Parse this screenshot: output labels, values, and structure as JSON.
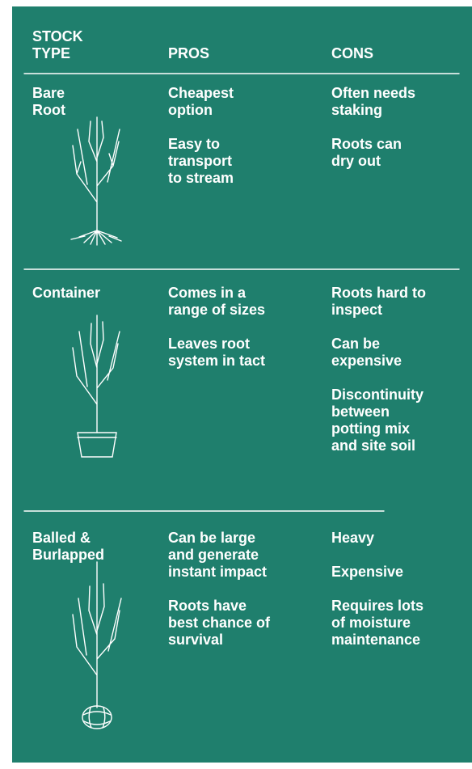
{
  "header": {
    "stock_type": "STOCK\nTYPE",
    "pros": "PROS",
    "cons": "CONS"
  },
  "rows": [
    {
      "type": "Bare\nRoot",
      "pros": [
        "Cheapest\noption",
        "Easy to\ntransport\nto stream"
      ],
      "cons": [
        "Often needs\nstaking",
        "Roots can\ndry out"
      ]
    },
    {
      "type": "Container",
      "pros": [
        "Comes in a\nrange of sizes",
        "Leaves root\nsystem in tact"
      ],
      "cons": [
        "Roots hard to\ninspect",
        "Can be\nexpensive",
        "Discontinuity\nbetween\npotting mix\nand site soil"
      ]
    },
    {
      "type": "Balled &\nBurlapped",
      "pros": [
        "Can be large\nand generate\ninstant impact",
        "Roots have\nbest chance of\nsurvival"
      ],
      "cons": [
        "Heavy",
        "Expensive",
        "Requires lots\nof moisture\nmaintenance"
      ]
    }
  ]
}
